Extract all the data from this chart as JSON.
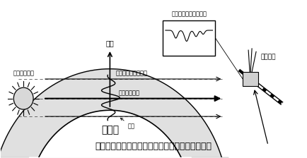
{
  "title": "図　宇宙における太陽の大気透過光観測システム",
  "title_fontsize": 9,
  "bg_color": "#ffffff",
  "label_altitude": "高度",
  "label_sun": "（太陽光源）",
  "label_earth": "地　球",
  "label_conc": "吸収気体濃度（ｘ）",
  "label_abs": "（大気吸収）",
  "label_density": "濃度",
  "label_spectrum": "観測スペクトル（ｙ）",
  "label_satellite": "人工衛星"
}
